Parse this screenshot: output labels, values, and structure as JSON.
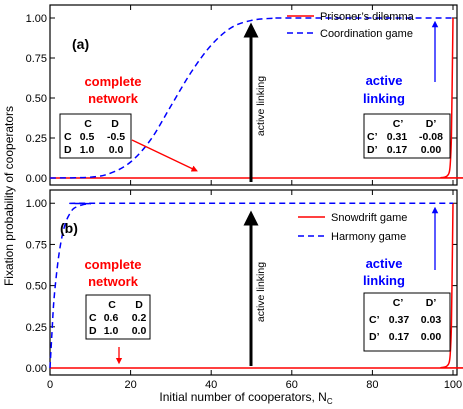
{
  "chart_data": [
    {
      "type": "line",
      "panel_label": "(a)",
      "xlim": [
        0,
        100
      ],
      "ylim": [
        0,
        1.05
      ],
      "xticks": [
        0,
        20,
        40,
        60,
        80,
        100
      ],
      "yticks": [
        "0.00",
        "0.25",
        "0.50",
        "0.75",
        "1.00"
      ],
      "series": [
        {
          "name": "Prisoner’s dilemma",
          "color": "#ff0000",
          "dash": "solid",
          "x": [
            0,
            95,
            97,
            98,
            98.5,
            99,
            99.3,
            99.6,
            99.8,
            100
          ],
          "y": [
            0,
            0,
            0.002,
            0.006,
            0.012,
            0.03,
            0.08,
            0.25,
            0.6,
            1.0
          ]
        },
        {
          "name": "Coordination game",
          "color": "#0000ff",
          "dash": "dashed",
          "x": [
            0,
            10,
            15,
            20,
            25,
            30,
            35,
            40,
            45,
            50,
            55,
            60,
            100
          ],
          "y": [
            0,
            0.005,
            0.03,
            0.1,
            0.24,
            0.45,
            0.66,
            0.83,
            0.94,
            0.985,
            0.998,
            1.0,
            1.0
          ]
        }
      ],
      "legend_position": "top-right",
      "annotations": {
        "complete_network": [
          "complete",
          "network"
        ],
        "active_linking": [
          "active",
          "linking"
        ],
        "arrow_label": "active linking"
      },
      "payoff_complete": {
        "cols": [
          "C",
          "D"
        ],
        "rows": [
          [
            "C",
            "0.5",
            "-0.5"
          ],
          [
            "D",
            "1.0",
            "0.0"
          ]
        ]
      },
      "payoff_active": {
        "cols": [
          "C’",
          "D’"
        ],
        "rows": [
          [
            "C’",
            "0.31",
            "-0.08"
          ],
          [
            "D’",
            "0.17",
            "0.00"
          ]
        ]
      }
    },
    {
      "type": "line",
      "panel_label": "(b)",
      "xlim": [
        0,
        100
      ],
      "ylim": [
        0,
        1.05
      ],
      "xticks": [
        0,
        20,
        40,
        60,
        80,
        100
      ],
      "yticks": [
        "0.00",
        "0.25",
        "0.50",
        "0.75",
        "1.00"
      ],
      "series": [
        {
          "name": "Snowdrift game",
          "color": "#ff0000",
          "dash": "solid",
          "x": [
            0,
            95,
            97,
            98,
            98.5,
            99,
            99.3,
            99.6,
            99.8,
            100
          ],
          "y": [
            0,
            0,
            0.002,
            0.006,
            0.012,
            0.03,
            0.08,
            0.25,
            0.6,
            1.0
          ]
        },
        {
          "name": "Harmony game",
          "color": "#0000ff",
          "dash": "dashed",
          "x": [
            0,
            0.5,
            1,
            2,
            3,
            4,
            5,
            6,
            8,
            10,
            12,
            100
          ],
          "y": [
            0,
            0.22,
            0.42,
            0.65,
            0.8,
            0.89,
            0.94,
            0.97,
            0.99,
            0.997,
            1.0,
            1.0
          ]
        }
      ],
      "legend_position": "top-right",
      "annotations": {
        "complete_network": [
          "complete",
          "network"
        ],
        "active_linking": [
          "active",
          "linking"
        ],
        "arrow_label": "active linking"
      },
      "payoff_complete": {
        "cols": [
          "C",
          "D"
        ],
        "rows": [
          [
            "C",
            "0.6",
            "0.2"
          ],
          [
            "D",
            "1.0",
            "0.0"
          ]
        ]
      },
      "payoff_active": {
        "cols": [
          "C’",
          "D’"
        ],
        "rows": [
          [
            "C’",
            "0.37",
            "0.03"
          ],
          [
            "D’",
            "0.17",
            "0.00"
          ]
        ]
      }
    }
  ],
  "ylabel": "Fixation probability of cooperators",
  "xlabel_main": "Initial number of cooperators, N",
  "xlabel_sub": "C",
  "colors": {
    "red": "#ff0000",
    "blue": "#0000ff",
    "black": "#000000"
  }
}
